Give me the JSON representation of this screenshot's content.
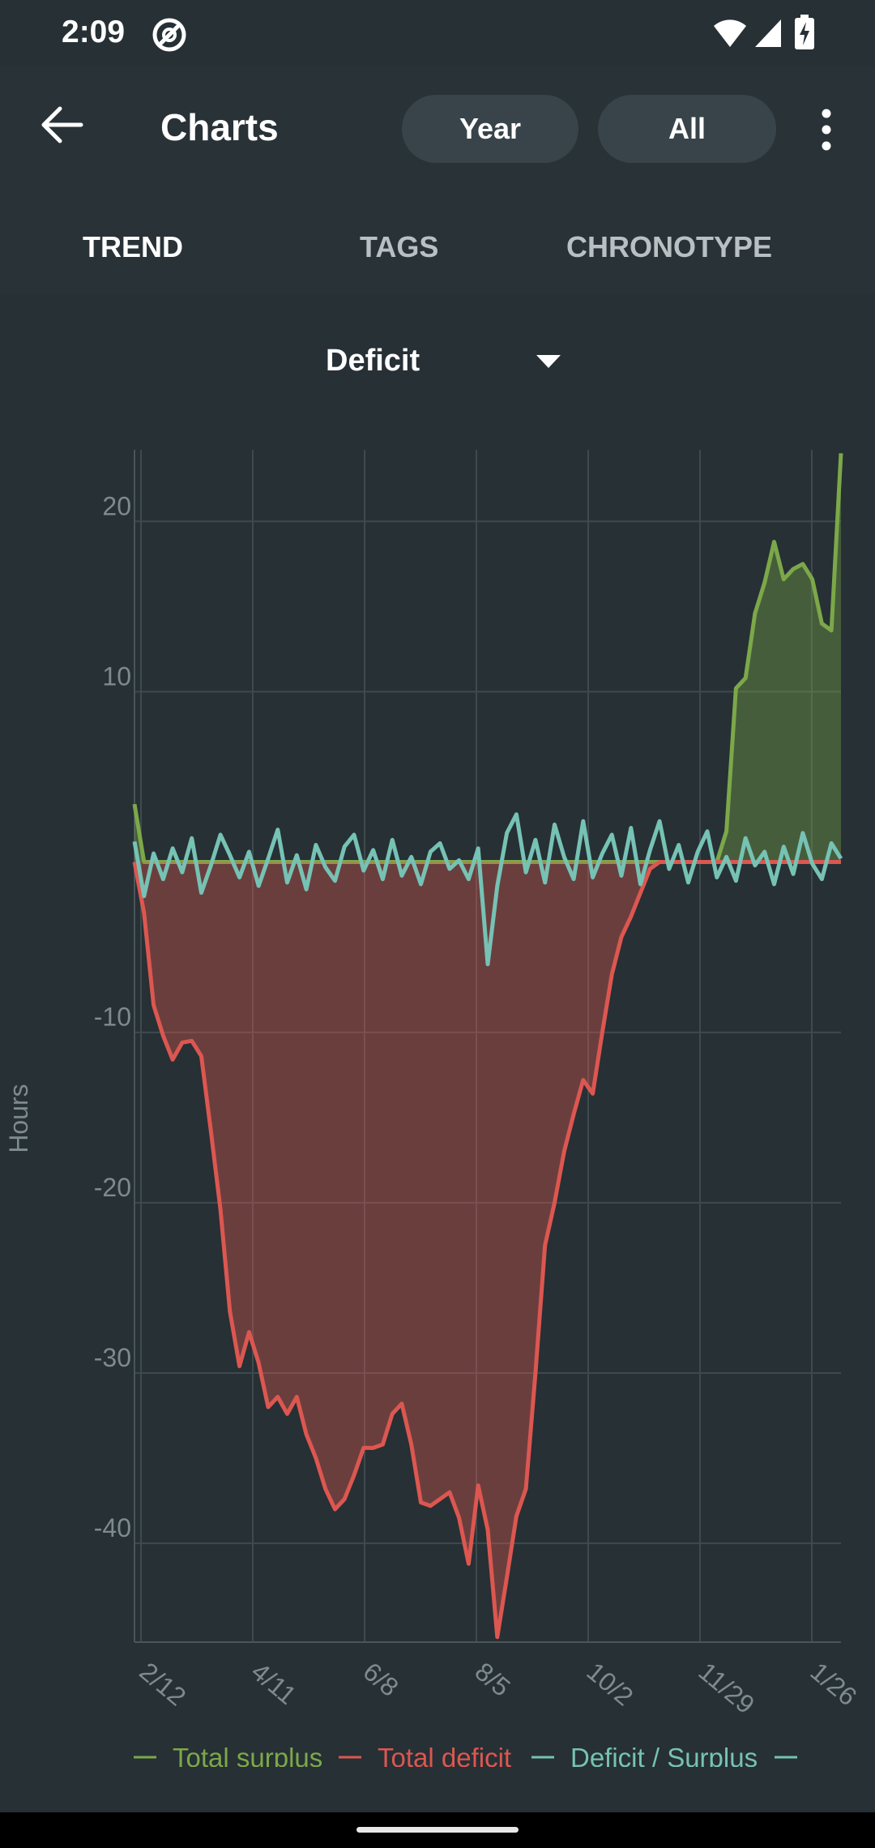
{
  "status_bar": {
    "time": "2:09"
  },
  "app_bar": {
    "title": "Charts",
    "pills": [
      "Year",
      "All"
    ]
  },
  "tabs": [
    {
      "label": "TREND",
      "selected": true
    },
    {
      "label": "TAGS",
      "selected": false
    },
    {
      "label": "CHRONOTYPE",
      "selected": false
    }
  ],
  "selector": {
    "value": "Deficit"
  },
  "colors": {
    "surplus": "#7ca849",
    "deficit": "#dc5750",
    "daily": "#76c2b4",
    "tab_selected": "#ffffff",
    "tab_unselected": "#b9c0c3"
  },
  "chart_data": {
    "type": "area",
    "ylabel": "Hours",
    "ylim": [
      -45.8,
      24.2
    ],
    "yticks": [
      20,
      10,
      -10,
      -20,
      -30,
      -40
    ],
    "xticks": [
      "2/12",
      "4/11",
      "6/8",
      "8/5",
      "10/2",
      "11/29",
      "1/26"
    ],
    "x": [
      "2/7",
      "2/12",
      "2/17",
      "2/22",
      "2/27",
      "3/4",
      "3/9",
      "3/14",
      "3/19",
      "3/24",
      "3/29",
      "4/3",
      "4/8",
      "4/11",
      "4/16",
      "4/21",
      "4/26",
      "5/1",
      "5/6",
      "5/11",
      "5/16",
      "5/21",
      "5/26",
      "5/31",
      "6/3",
      "6/8",
      "6/13",
      "6/18",
      "6/23",
      "6/28",
      "7/3",
      "7/8",
      "7/13",
      "7/18",
      "7/23",
      "7/28",
      "8/2",
      "8/5",
      "8/10",
      "8/15",
      "8/20",
      "8/25",
      "8/30",
      "9/4",
      "9/9",
      "9/14",
      "9/19",
      "9/24",
      "9/29",
      "10/2",
      "10/7",
      "10/12",
      "10/17",
      "10/22",
      "10/27",
      "11/1",
      "11/6",
      "11/11",
      "11/16",
      "11/21",
      "11/26",
      "11/29",
      "12/4",
      "12/9",
      "12/14",
      "12/19",
      "12/24",
      "12/29",
      "1/3",
      "1/8",
      "1/13",
      "1/18",
      "1/23",
      "1/26",
      "1/31"
    ],
    "series": [
      {
        "name": "Total surplus",
        "values": [
          3.4,
          0,
          0,
          0,
          0,
          0,
          0,
          0,
          0,
          0,
          0,
          0,
          0,
          0,
          0,
          0,
          0,
          0,
          0,
          0,
          0,
          0,
          0,
          0,
          0,
          0,
          0,
          0,
          0,
          0,
          0,
          0,
          0,
          0,
          0,
          0,
          0,
          0,
          0,
          0,
          0,
          0,
          0,
          0,
          0,
          0,
          0,
          0,
          0,
          0,
          0,
          0,
          0,
          0,
          0,
          0,
          0,
          0,
          0,
          0,
          0,
          0,
          1.8,
          10.2,
          10.8,
          14.6,
          16.4,
          18.8,
          16.6,
          17.2,
          17.5,
          16.6,
          14.0,
          13.6,
          24.0
        ]
      },
      {
        "name": "Total deficit",
        "values": [
          0,
          -3.0,
          -8.4,
          -10.2,
          -11.6,
          -10.6,
          -10.5,
          -11.4,
          -15.8,
          -20.4,
          -26.4,
          -29.6,
          -27.6,
          -29.4,
          -32.0,
          -31.4,
          -32.4,
          -31.4,
          -33.6,
          -35.0,
          -36.8,
          -38.0,
          -37.4,
          -36.0,
          -34.4,
          -34.4,
          -34.2,
          -32.4,
          -31.8,
          -34.2,
          -37.6,
          -37.8,
          -37.4,
          -37.0,
          -38.5,
          -41.2,
          -36.6,
          -39.2,
          -45.5,
          -42.0,
          -38.4,
          -36.8,
          -30.0,
          -22.5,
          -20.0,
          -17.0,
          -14.8,
          -12.8,
          -13.6,
          -10.0,
          -6.6,
          -4.4,
          -3.2,
          -1.8,
          -0.4,
          0,
          0,
          0,
          0,
          0,
          0,
          0,
          0,
          0,
          0,
          0,
          0,
          0,
          0,
          0,
          0,
          0,
          0,
          0,
          0
        ]
      },
      {
        "name": "Deficit / Surplus",
        "values": [
          1.2,
          -2.0,
          0.5,
          -1.0,
          0.8,
          -0.6,
          1.4,
          -1.8,
          -0.2,
          1.6,
          0.4,
          -0.9,
          0.6,
          -1.4,
          0.2,
          1.9,
          -1.2,
          0.4,
          -1.6,
          1.0,
          -0.3,
          -1.1,
          0.9,
          1.6,
          -0.5,
          0.7,
          -1.0,
          1.3,
          -0.8,
          0.3,
          -1.3,
          0.6,
          1.1,
          -0.4,
          0.1,
          -1.0,
          0.8,
          -6.0,
          -1.4,
          1.7,
          2.8,
          -0.6,
          1.3,
          -1.2,
          2.2,
          0.3,
          -1.0,
          2.4,
          -0.9,
          0.5,
          1.6,
          -0.8,
          2.0,
          -1.3,
          0.7,
          2.4,
          -0.4,
          1.0,
          -1.2,
          0.6,
          1.8,
          -0.9,
          0.3,
          -1.1,
          1.4,
          -0.2,
          0.6,
          -1.3,
          0.9,
          -0.7,
          1.7,
          -0.1,
          -1.0,
          1.1,
          0.2
        ]
      }
    ],
    "legend_position": "bottom",
    "grid": true
  }
}
